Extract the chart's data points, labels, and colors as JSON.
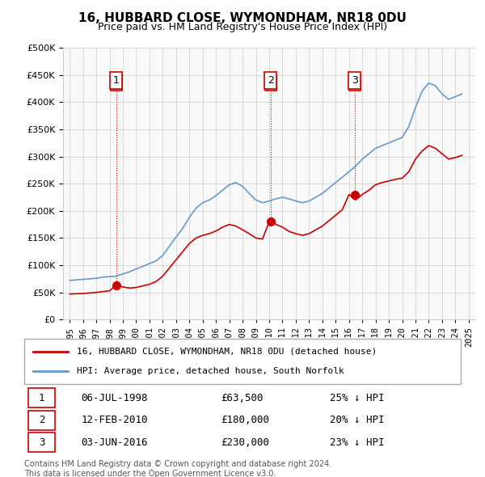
{
  "title": "16, HUBBARD CLOSE, WYMONDHAM, NR18 0DU",
  "subtitle": "Price paid vs. HM Land Registry's House Price Index (HPI)",
  "hpi_color": "#6699cc",
  "price_color": "#cc0000",
  "background_color": "#ffffff",
  "plot_bg_color": "#f9f9f9",
  "ylim": [
    0,
    500000
  ],
  "yticks": [
    0,
    50000,
    100000,
    150000,
    200000,
    250000,
    300000,
    350000,
    400000,
    450000,
    500000
  ],
  "sale_dates": [
    1998.5,
    2010.1,
    2016.42
  ],
  "sale_prices": [
    63500,
    180000,
    230000
  ],
  "sale_labels": [
    "1",
    "2",
    "3"
  ],
  "legend_label_price": "16, HUBBARD CLOSE, WYMONDHAM, NR18 0DU (detached house)",
  "legend_label_hpi": "HPI: Average price, detached house, South Norfolk",
  "table_data": [
    [
      "1",
      "06-JUL-1998",
      "£63,500",
      "25% ↓ HPI"
    ],
    [
      "2",
      "12-FEB-2010",
      "£180,000",
      "20% ↓ HPI"
    ],
    [
      "3",
      "03-JUN-2016",
      "£230,000",
      "23% ↓ HPI"
    ]
  ],
  "footnote": "Contains HM Land Registry data © Crown copyright and database right 2024.\nThis data is licensed under the Open Government Licence v3.0.",
  "hpi_years": [
    1995,
    1995.5,
    1996,
    1996.5,
    1997,
    1997.5,
    1998,
    1998.5,
    1999,
    1999.5,
    2000,
    2000.5,
    2001,
    2001.5,
    2002,
    2002.5,
    2003,
    2003.5,
    2004,
    2004.5,
    2005,
    2005.5,
    2006,
    2006.5,
    2007,
    2007.5,
    2008,
    2008.5,
    2009,
    2009.5,
    2010,
    2010.5,
    2011,
    2011.5,
    2012,
    2012.5,
    2013,
    2013.5,
    2014,
    2014.5,
    2015,
    2015.5,
    2016,
    2016.5,
    2017,
    2017.5,
    2018,
    2018.5,
    2019,
    2019.5,
    2020,
    2020.5,
    2021,
    2021.5,
    2022,
    2022.5,
    2023,
    2023.5,
    2024,
    2024.5
  ],
  "hpi_values": [
    72000,
    73000,
    74000,
    75000,
    76000,
    78000,
    79000,
    80000,
    84000,
    88000,
    93000,
    98000,
    103000,
    108000,
    118000,
    135000,
    152000,
    168000,
    188000,
    205000,
    215000,
    220000,
    228000,
    238000,
    248000,
    252000,
    245000,
    232000,
    220000,
    215000,
    218000,
    222000,
    225000,
    222000,
    218000,
    215000,
    218000,
    225000,
    232000,
    242000,
    252000,
    262000,
    272000,
    282000,
    295000,
    305000,
    315000,
    320000,
    325000,
    330000,
    335000,
    355000,
    390000,
    420000,
    435000,
    430000,
    415000,
    405000,
    410000,
    415000
  ],
  "price_years": [
    1995,
    1995.5,
    1996,
    1996.5,
    1997,
    1997.5,
    1998,
    1998.5,
    1999,
    1999.5,
    2000,
    2000.5,
    2001,
    2001.5,
    2002,
    2002.5,
    2003,
    2003.5,
    2004,
    2004.5,
    2005,
    2005.5,
    2006,
    2006.5,
    2007,
    2007.5,
    2008,
    2008.5,
    2009,
    2009.5,
    2010,
    2010.5,
    2011,
    2011.5,
    2012,
    2012.5,
    2013,
    2013.5,
    2014,
    2014.5,
    2015,
    2015.5,
    2016,
    2016.5,
    2017,
    2017.5,
    2018,
    2018.5,
    2019,
    2019.5,
    2020,
    2020.5,
    2021,
    2021.5,
    2022,
    2022.5,
    2023,
    2023.5,
    2024,
    2024.5
  ],
  "price_values": [
    47000,
    47500,
    48000,
    49000,
    50000,
    51500,
    53000,
    63500,
    60000,
    58000,
    59000,
    62000,
    65000,
    70000,
    80000,
    95000,
    110000,
    125000,
    140000,
    150000,
    155000,
    158000,
    163000,
    170000,
    175000,
    172000,
    165000,
    158000,
    150000,
    148000,
    180000,
    175000,
    170000,
    162000,
    158000,
    155000,
    158000,
    165000,
    172000,
    182000,
    192000,
    202000,
    230000,
    220000,
    230000,
    238000,
    248000,
    252000,
    255000,
    258000,
    260000,
    272000,
    295000,
    310000,
    320000,
    315000,
    305000,
    295000,
    298000,
    302000
  ]
}
